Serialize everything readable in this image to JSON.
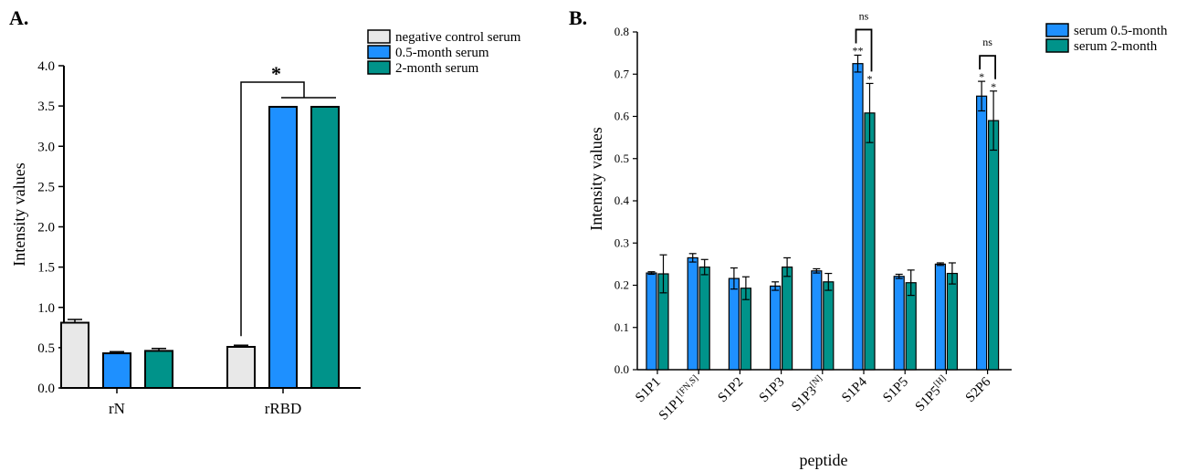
{
  "colors": {
    "negative": "#e8e8e8",
    "half_month": "#1e90ff",
    "two_month": "#00938a"
  },
  "chart_data": [
    {
      "panel": "A.",
      "type": "bar",
      "ylabel": "Intensity values",
      "xlabel": "",
      "ylim": [
        0,
        4.0
      ],
      "yticks": [
        "0.0",
        "0.5",
        "1.0",
        "1.5",
        "2.0",
        "2.5",
        "3.0",
        "3.5",
        "4.0"
      ],
      "categories": [
        "rN",
        "rRBD"
      ],
      "legend": {
        "position": "top-right"
      },
      "series": [
        {
          "name": "negative control serum",
          "color_key": "negative",
          "values": [
            0.81,
            0.51
          ],
          "errors": [
            0.04,
            0.02
          ]
        },
        {
          "name": "0.5-month serum",
          "color_key": "half_month",
          "values": [
            0.43,
            3.49
          ],
          "errors": [
            0.02,
            0.0
          ]
        },
        {
          "name": "2-month serum",
          "color_key": "two_month",
          "values": [
            0.46,
            3.49
          ],
          "errors": [
            0.03,
            0.0
          ]
        }
      ],
      "annotations": [
        {
          "label": "*"
        }
      ]
    },
    {
      "panel": "B.",
      "type": "bar",
      "ylabel": "Intensity values",
      "xlabel": "peptide",
      "ylim": [
        0,
        0.8
      ],
      "yticks": [
        "0.0",
        "0.1",
        "0.2",
        "0.3",
        "0.4",
        "0.5",
        "0.6",
        "0.7",
        "0.8"
      ],
      "categories": [
        {
          "base": "S1P1",
          "sup": ""
        },
        {
          "base": "S1P1",
          "sup": "[FN,S]"
        },
        {
          "base": "S1P2",
          "sup": ""
        },
        {
          "base": "S1P3",
          "sup": ""
        },
        {
          "base": "S1P3",
          "sup": "[N]"
        },
        {
          "base": "S1P4",
          "sup": ""
        },
        {
          "base": "S1P5",
          "sup": ""
        },
        {
          "base": "S1P5",
          "sup": "[H]"
        },
        {
          "base": "S2P6",
          "sup": ""
        }
      ],
      "legend": {
        "position": "top-right"
      },
      "series": [
        {
          "name": "serum 0.5-month",
          "color_key": "half_month",
          "values": [
            0.229,
            0.265,
            0.216,
            0.198,
            0.234,
            0.725,
            0.221,
            0.25,
            0.648
          ],
          "errors": [
            0.003,
            0.01,
            0.025,
            0.01,
            0.005,
            0.02,
            0.005,
            0.003,
            0.035
          ],
          "marks": [
            "",
            "",
            "",
            "",
            "",
            "**",
            "",
            "",
            "*"
          ]
        },
        {
          "name": "serum 2-month",
          "color_key": "two_month",
          "values": [
            0.227,
            0.243,
            0.193,
            0.243,
            0.208,
            0.608,
            0.206,
            0.228,
            0.59
          ],
          "errors": [
            0.045,
            0.018,
            0.027,
            0.022,
            0.02,
            0.07,
            0.03,
            0.025,
            0.07
          ],
          "marks": [
            "",
            "",
            "",
            "",
            "",
            "*",
            "",
            "",
            "*"
          ]
        }
      ],
      "annotations": [
        {
          "label": "ns",
          "category_index": 5
        },
        {
          "label": "ns",
          "category_index": 8
        }
      ]
    }
  ]
}
